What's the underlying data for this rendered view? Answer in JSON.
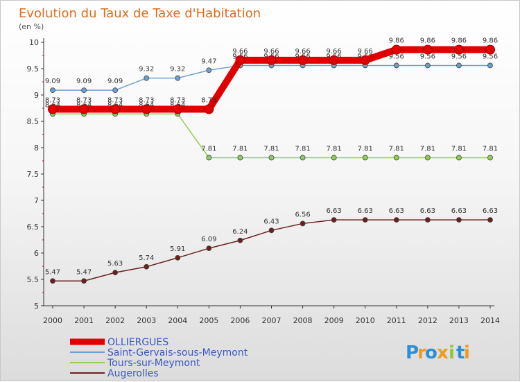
{
  "title": "Evolution du Taux de Taxe d'Habitation",
  "unit": "(en %)",
  "chart_data": {
    "type": "line",
    "title": "Evolution du Taux de Taxe d'Habitation",
    "ylabel": "(en %)",
    "xlabel": "",
    "ylim": [
      5,
      10
    ],
    "yticks": [
      "5",
      "5.5",
      "6",
      "6.5",
      "7",
      "7.5",
      "8",
      "8.5",
      "9",
      "9.5",
      "10"
    ],
    "x": [
      "2000",
      "2001",
      "2002",
      "2003",
      "2004",
      "2005",
      "2006",
      "2007",
      "2008",
      "2009",
      "2010",
      "2011",
      "2012",
      "2013",
      "2014"
    ],
    "grid": false,
    "legend_position": "bottom-left",
    "series": [
      {
        "name": "OLLIERGUES",
        "color": "#e00000",
        "values": [
          8.73,
          8.73,
          8.73,
          8.73,
          8.73,
          8.73,
          9.66,
          9.66,
          9.66,
          9.66,
          9.66,
          9.86,
          9.86,
          9.86,
          9.86
        ]
      },
      {
        "name": "Saint-Gervais-sous-Meymont",
        "color": "#6a9fd4",
        "values": [
          9.09,
          9.09,
          9.09,
          9.32,
          9.32,
          9.47,
          9.56,
          9.56,
          9.56,
          9.56,
          9.56,
          9.56,
          9.56,
          9.56,
          9.56
        ]
      },
      {
        "name": "Tours-sur-Meymont",
        "color": "#8fd14f",
        "values": [
          8.64,
          8.64,
          8.64,
          8.64,
          8.64,
          7.81,
          7.81,
          7.81,
          7.81,
          7.81,
          7.81,
          7.81,
          7.81,
          7.81,
          7.81
        ]
      },
      {
        "name": "Augerolles",
        "color": "#6b1f1f",
        "values": [
          5.47,
          5.47,
          5.63,
          5.74,
          5.91,
          6.09,
          6.24,
          6.43,
          6.56,
          6.63,
          6.63,
          6.63,
          6.63,
          6.63,
          6.63
        ]
      }
    ]
  },
  "logo": {
    "letters": [
      "P",
      "r",
      "o",
      "x",
      "i",
      "t",
      "i"
    ],
    "colors": [
      "#2a8fd8",
      "#f29a1c",
      "#2a8fd8",
      "#f29a1c",
      "#8dc63f",
      "#2a8fd8",
      "#f29a1c"
    ]
  }
}
